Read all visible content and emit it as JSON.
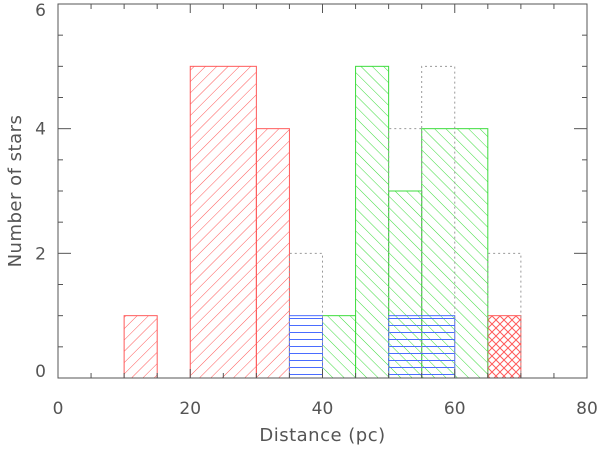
{
  "chart_data": {
    "type": "bar",
    "title": "",
    "xlabel": "Distance (pc)",
    "ylabel": "Number of stars",
    "xlim": [
      0,
      80
    ],
    "ylim": [
      0,
      6
    ],
    "xticks": [
      "0",
      "20",
      "40",
      "60",
      "80"
    ],
    "yticks": [
      "0",
      "2",
      "4",
      "6"
    ],
    "x_tick_values": [
      0,
      20,
      40,
      60,
      80
    ],
    "y_tick_values": [
      0,
      2,
      4,
      6
    ],
    "grid": false,
    "bin_width": 5,
    "series": [
      {
        "color": "#ff5a5a",
        "hatch": "diagonal-down",
        "style": "filled",
        "bins": [
          {
            "x0": 10,
            "x1": 15,
            "value": 1
          },
          {
            "x0": 20,
            "x1": 30,
            "value": 5
          },
          {
            "x0": 30,
            "x1": 35,
            "value": 4
          },
          {
            "x0": 65,
            "x1": 70,
            "value": 1
          }
        ]
      },
      {
        "color": "#3ddc3d",
        "hatch": "diagonal-up",
        "style": "filled",
        "bins": [
          {
            "x0": 40,
            "x1": 45,
            "value": 1
          },
          {
            "x0": 45,
            "x1": 50,
            "value": 5
          },
          {
            "x0": 50,
            "x1": 55,
            "value": 3
          },
          {
            "x0": 55,
            "x1": 65,
            "value": 4
          }
        ]
      },
      {
        "color": "#4a6cff",
        "hatch": "horizontal",
        "style": "filled",
        "bins": [
          {
            "x0": 35,
            "x1": 40,
            "value": 1
          },
          {
            "x0": 50,
            "x1": 60,
            "value": 1
          }
        ]
      },
      {
        "color": "#999999",
        "hatch": "none",
        "style": "dotted-outline",
        "bins": [
          {
            "x0": 35,
            "x1": 40,
            "value": 2
          },
          {
            "x0": 50,
            "x1": 55,
            "value": 4
          },
          {
            "x0": 55,
            "x1": 60,
            "value": 5
          },
          {
            "x0": 65,
            "x1": 70,
            "value": 2
          }
        ]
      }
    ]
  }
}
